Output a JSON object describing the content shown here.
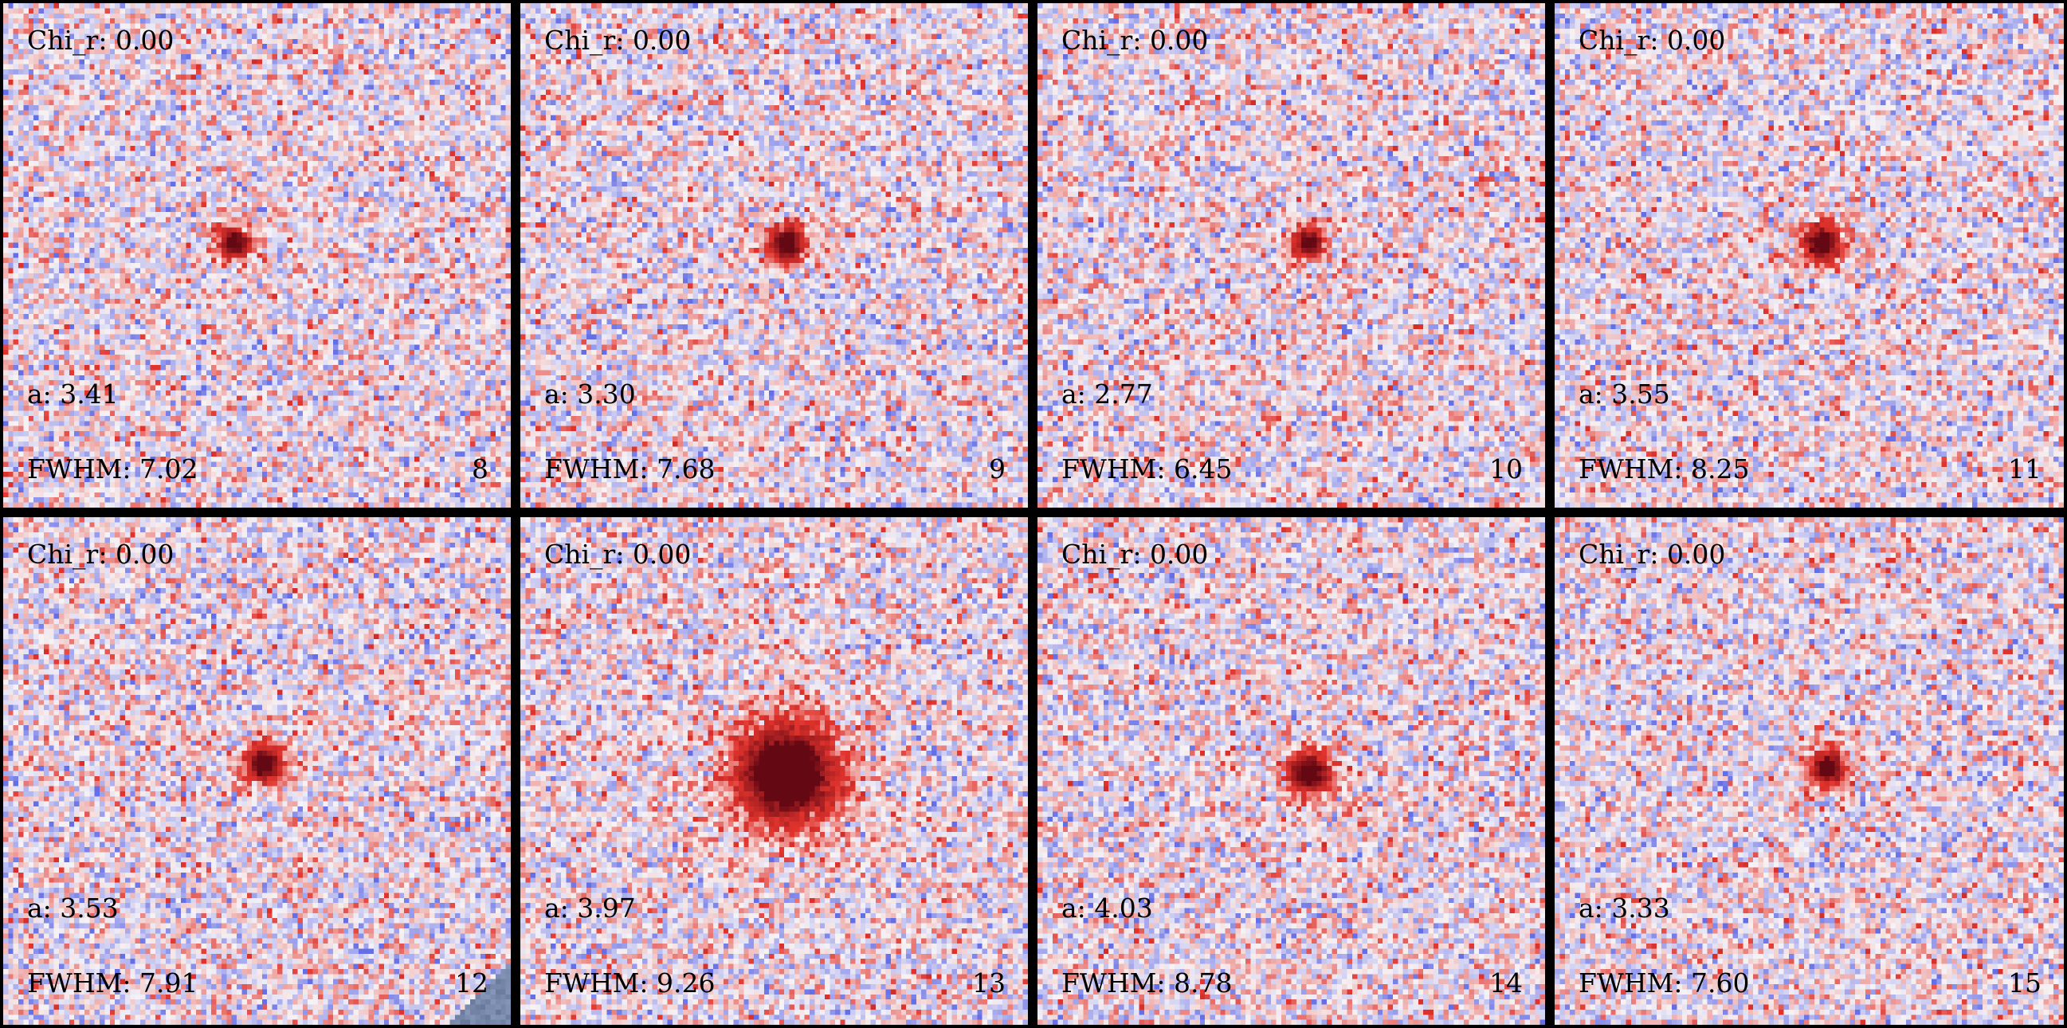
{
  "panels": [
    {
      "index": "8",
      "chi_label": "Chi_r: 0.00",
      "a_label": "a: 3.41",
      "fwhm_label": "FWHM: 7.02",
      "a_value": 3.41,
      "fwhm_value": 7.02,
      "chi_value": 0.0,
      "source_offset": [
        -0.05,
        -0.03
      ],
      "peak": 0.9
    },
    {
      "index": "9",
      "chi_label": "Chi_r: 0.00",
      "a_label": "a: 3.30",
      "fwhm_label": "FWHM: 7.68",
      "a_value": 3.3,
      "fwhm_value": 7.68,
      "chi_value": 0.0,
      "source_offset": [
        0.02,
        -0.03
      ],
      "peak": 1.0
    },
    {
      "index": "10",
      "chi_label": "Chi_r: 0.00",
      "a_label": "a: 2.77",
      "fwhm_label": "FWHM: 6.45",
      "a_value": 2.77,
      "fwhm_value": 6.45,
      "chi_value": 0.0,
      "source_offset": [
        0.03,
        -0.03
      ],
      "peak": 0.95
    },
    {
      "index": "11",
      "chi_label": "Chi_r: 0.00",
      "a_label": "a: 3.55",
      "fwhm_label": "FWHM: 8.25",
      "a_value": 3.55,
      "fwhm_value": 8.25,
      "chi_value": 0.0,
      "source_offset": [
        0.02,
        -0.03
      ],
      "peak": 1.0
    },
    {
      "index": "12",
      "chi_label": "Chi_r: 0.00",
      "a_label": "a: 3.53",
      "fwhm_label": "FWHM: 7.91",
      "a_value": 3.53,
      "fwhm_value": 7.91,
      "chi_value": 0.0,
      "source_offset": [
        0.01,
        -0.02
      ],
      "peak": 1.0,
      "corner_mask": true
    },
    {
      "index": "13",
      "chi_label": "Chi_r: 0.00",
      "a_label": "a: 3.97",
      "fwhm_label": "FWHM: 9.26",
      "a_value": 3.97,
      "fwhm_value": 9.26,
      "chi_value": 0.0,
      "source_offset": [
        0.02,
        0.0
      ],
      "peak": 1.0,
      "big": true
    },
    {
      "index": "14",
      "chi_label": "Chi_r: 0.00",
      "a_label": "a: 4.03",
      "fwhm_label": "FWHM: 8.78",
      "a_value": 4.03,
      "fwhm_value": 8.78,
      "chi_value": 0.0,
      "source_offset": [
        0.03,
        0.0
      ],
      "peak": 1.0
    },
    {
      "index": "15",
      "chi_label": "Chi_r: 0.00",
      "a_label": "a: 3.33",
      "fwhm_label": "FWHM: 7.60",
      "a_value": 3.33,
      "fwhm_value": 7.6,
      "chi_value": 0.0,
      "source_offset": [
        0.03,
        -0.01
      ],
      "peak": 0.95
    }
  ],
  "colors": {
    "background": "#000000",
    "positive": "#b2182b",
    "peak": "#67001f",
    "negative": "#4053d3",
    "mask": "#6f7f9f"
  }
}
